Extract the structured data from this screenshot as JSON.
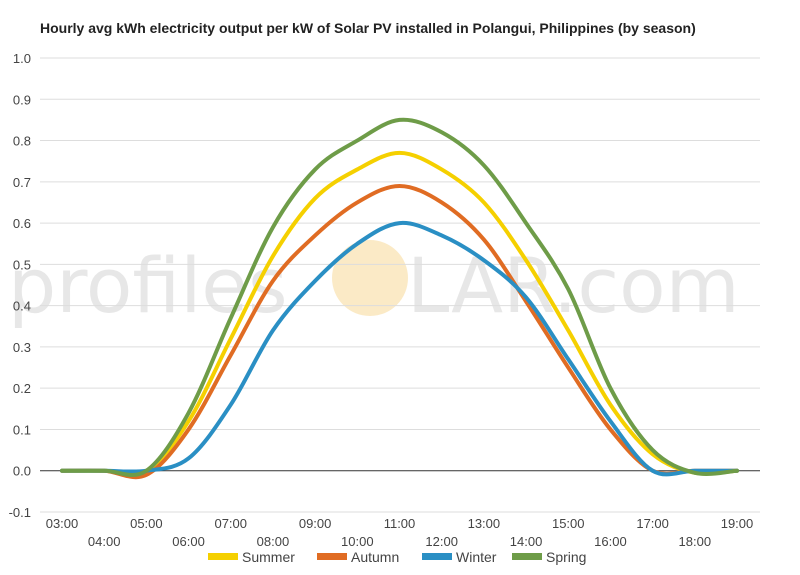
{
  "chart_data": {
    "type": "line",
    "title": "Hourly avg kWh electricity output per kW of Solar PV installed in Polangui, Philippines (by season)",
    "xlabel": "",
    "ylabel": "",
    "ylim": [
      -0.1,
      1.0
    ],
    "yticks": [
      "-0.1",
      "0.0",
      "0.1",
      "0.2",
      "0.3",
      "0.4",
      "0.5",
      "0.6",
      "0.7",
      "0.8",
      "0.9",
      "1.0"
    ],
    "xticks_upper": [
      "03:00",
      "05:00",
      "07:00",
      "09:00",
      "11:00",
      "13:00",
      "15:00",
      "17:00",
      "19:00"
    ],
    "xticks_lower": [
      "04:00",
      "06:00",
      "08:00",
      "10:00",
      "12:00",
      "14:00",
      "16:00",
      "18:00"
    ],
    "x": [
      "03:00",
      "04:00",
      "05:00",
      "06:00",
      "07:00",
      "08:00",
      "09:00",
      "10:00",
      "11:00",
      "12:00",
      "13:00",
      "14:00",
      "15:00",
      "16:00",
      "17:00",
      "18:00",
      "19:00"
    ],
    "grid": true,
    "legend_position": "bottom",
    "series": [
      {
        "name": "Summer",
        "color": "#f5d000",
        "values": [
          0.0,
          0.0,
          0.0,
          0.12,
          0.32,
          0.52,
          0.66,
          0.73,
          0.77,
          0.73,
          0.65,
          0.51,
          0.34,
          0.16,
          0.04,
          -0.005,
          0.0
        ]
      },
      {
        "name": "Autumn",
        "color": "#e06c23",
        "values": [
          0.0,
          0.0,
          -0.01,
          0.1,
          0.28,
          0.46,
          0.57,
          0.65,
          0.69,
          0.65,
          0.56,
          0.41,
          0.25,
          0.1,
          0.0,
          0.0,
          0.0
        ]
      },
      {
        "name": "Winter",
        "color": "#2a8fc4",
        "values": [
          0.0,
          0.0,
          0.0,
          0.03,
          0.16,
          0.34,
          0.46,
          0.55,
          0.6,
          0.57,
          0.51,
          0.42,
          0.27,
          0.12,
          0.0,
          0.0,
          0.0
        ]
      },
      {
        "name": "Spring",
        "color": "#6e9c48",
        "values": [
          0.0,
          0.0,
          0.0,
          0.14,
          0.37,
          0.59,
          0.73,
          0.8,
          0.85,
          0.82,
          0.74,
          0.6,
          0.44,
          0.2,
          0.05,
          -0.005,
          0.0
        ]
      }
    ]
  },
  "watermark": {
    "text_left": "profiles",
    "text_right": "LAR.com",
    "sun_color": "#f8dca0"
  }
}
